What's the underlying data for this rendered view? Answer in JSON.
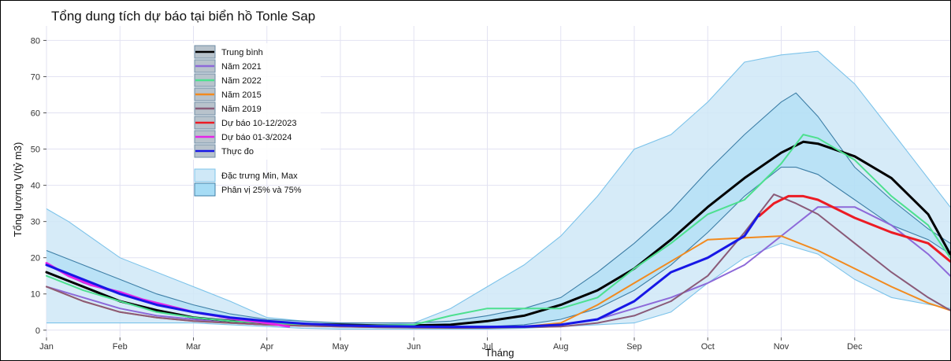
{
  "chart_data": {
    "type": "line",
    "title": "Tổng dung tích dự báo tại biển hồ Tonle Sap",
    "xlabel": "Tháng",
    "ylabel": "Tổng lượng V(tỷ m3)",
    "x_ticks": [
      "Jan",
      "Feb",
      "Mar",
      "Apr",
      "May",
      "Jun",
      "Jul",
      "Aug",
      "Sep",
      "Oct",
      "Nov",
      "Dec"
    ],
    "xlim": [
      0,
      12.3
    ],
    "ylim": [
      -2,
      84
    ],
    "y_ticks": [
      0,
      10,
      20,
      30,
      40,
      50,
      60,
      70,
      80
    ],
    "grid": true,
    "legend_position": "top-left",
    "bands": [
      {
        "name": "Đặc trưng Min, Max",
        "color": "#cfe8f7",
        "stroke": "#7cc3ea",
        "x": [
          0,
          0.3,
          1,
          2,
          2.5,
          3,
          3.5,
          4,
          4.5,
          5,
          5.5,
          6,
          6.5,
          7,
          7.5,
          8,
          8.5,
          9,
          9.5,
          10,
          10.5,
          11,
          11.5,
          12.3
        ],
        "upper": [
          33.5,
          30,
          20,
          12,
          8,
          3.5,
          2.5,
          1.8,
          1.5,
          2,
          6,
          12,
          18,
          26,
          37,
          50,
          54,
          63,
          74,
          76,
          77,
          68,
          55,
          34
        ],
        "lower": [
          2,
          2,
          2,
          2,
          1.5,
          1,
          0.5,
          0.3,
          0.3,
          0.3,
          0.3,
          0.3,
          0.5,
          1,
          1.5,
          2,
          5,
          13,
          20,
          24,
          21,
          14,
          9,
          6
        ]
      },
      {
        "name": "Phân vị 25% và 75%",
        "color": "#a6dcf5",
        "stroke": "#3d7ea6",
        "x": [
          0,
          0.5,
          1,
          1.5,
          2,
          2.5,
          3,
          3.5,
          4,
          4.5,
          5,
          5.5,
          6,
          6.5,
          7,
          7.5,
          8,
          8.5,
          9,
          9.5,
          10,
          10.2,
          10.5,
          11,
          11.5,
          12,
          12.3
        ],
        "upper": [
          22,
          18,
          14,
          10,
          7,
          4.5,
          3,
          2.5,
          2,
          2,
          2,
          2.5,
          4,
          6,
          9,
          16,
          24,
          33,
          44,
          54,
          63,
          65.5,
          59,
          45,
          36,
          28,
          24
        ],
        "lower": [
          18,
          13,
          10,
          7,
          5,
          3,
          2,
          1.5,
          1.2,
          1,
          1,
          1,
          1,
          1.5,
          3,
          6,
          11,
          18,
          27,
          37,
          45,
          45,
          43,
          36,
          29,
          25,
          21
        ]
      }
    ],
    "series": [
      {
        "name": "Trung bình",
        "color": "#000000",
        "width": 3,
        "x": [
          0,
          0.5,
          1,
          1.5,
          2,
          2.5,
          3,
          3.5,
          4,
          4.5,
          5,
          5.5,
          6,
          6.5,
          7,
          7.5,
          8,
          8.5,
          9,
          9.5,
          10,
          10.3,
          10.5,
          11,
          11.5,
          12,
          12.3
        ],
        "y": [
          16,
          12,
          8,
          5.5,
          3.5,
          2.5,
          2,
          1.7,
          1.5,
          1.3,
          1.3,
          1.5,
          2.5,
          4,
          7,
          11,
          17,
          25,
          34,
          42,
          49,
          52,
          51.5,
          48,
          42,
          32,
          21
        ]
      },
      {
        "name": "Năm 2021",
        "color": "#8d69d9",
        "width": 2,
        "x": [
          0,
          0.5,
          1,
          1.5,
          2,
          2.5,
          3,
          3.5,
          4,
          4.5,
          5,
          5.5,
          6,
          6.5,
          7,
          7.5,
          8,
          8.5,
          9,
          9.5,
          10,
          10.5,
          11,
          11.5,
          12,
          12.3
        ],
        "y": [
          12,
          9,
          6,
          4,
          3,
          2,
          1.5,
          1.2,
          1,
          1,
          1,
          1,
          1,
          1,
          1.5,
          3,
          6,
          9,
          13,
          18,
          26,
          34,
          34,
          29,
          21,
          15
        ]
      },
      {
        "name": "Năm 2022",
        "color": "#4de08f",
        "width": 2,
        "x": [
          0,
          0.5,
          1,
          1.5,
          2,
          2.5,
          3,
          3.5,
          4,
          4.5,
          5,
          5.5,
          6,
          6.5,
          7,
          7.5,
          8,
          8.5,
          9,
          9.5,
          10,
          10.3,
          10.5,
          11,
          11.5,
          12,
          12.3
        ],
        "y": [
          15,
          11,
          8,
          5,
          3.5,
          2.5,
          2,
          1.5,
          1.3,
          1.3,
          1.5,
          4,
          6,
          6,
          6,
          9,
          17,
          24,
          32,
          36,
          46,
          54,
          53,
          47,
          37,
          29,
          20
        ]
      },
      {
        "name": "Năm 2015",
        "color": "#f28a1e",
        "width": 2,
        "x": [
          0,
          0.5,
          1,
          1.5,
          2,
          2.5,
          3,
          3.5,
          4,
          4.5,
          5,
          5.5,
          6,
          6.5,
          7,
          7.5,
          8,
          8.5,
          9,
          9.5,
          10,
          10.5,
          11,
          11.5,
          12,
          12.3
        ],
        "y": [
          12,
          8,
          5,
          3.5,
          2.5,
          2,
          1.5,
          1.2,
          1,
          0.8,
          0.7,
          0.7,
          0.8,
          1,
          2,
          7,
          13,
          19,
          25,
          25.5,
          26,
          22,
          17,
          12,
          7.5,
          5.5
        ]
      },
      {
        "name": "Năm 2019",
        "color": "#8a5a78",
        "width": 2,
        "x": [
          0,
          0.5,
          1,
          1.5,
          2,
          2.5,
          3,
          3.5,
          4,
          4.5,
          5,
          5.5,
          6,
          6.5,
          7,
          7.5,
          8,
          8.5,
          9,
          9.5,
          9.9,
          10.2,
          10.5,
          11,
          11.5,
          12,
          12.3
        ],
        "y": [
          12,
          8,
          5,
          3.5,
          2.5,
          2,
          1.5,
          1.2,
          1,
          0.8,
          0.7,
          0.6,
          0.6,
          0.8,
          1,
          2,
          4,
          8,
          15,
          27,
          37.5,
          35,
          32,
          24,
          16,
          9,
          5.5
        ]
      },
      {
        "name": "Dự báo 10-12/2023",
        "color": "#ec1c24",
        "width": 3,
        "x": [
          9.7,
          9.9,
          10.1,
          10.3,
          10.5,
          11,
          11.5,
          12,
          12.3
        ],
        "y": [
          31.5,
          35,
          37,
          37,
          36,
          31,
          27,
          24,
          19
        ]
      },
      {
        "name": "Dự báo 01-3/2024",
        "color": "#e524e8",
        "width": 3,
        "x": [
          0,
          0.3,
          0.6,
          1,
          1.3,
          1.6,
          2,
          2.3,
          2.6,
          3,
          3.3
        ],
        "y": [
          18.5,
          15,
          12.5,
          10.5,
          8.5,
          7,
          5,
          4,
          3,
          2,
          1
        ]
      },
      {
        "name": "Thực đo",
        "color": "#1717e6",
        "width": 3,
        "x": [
          0,
          0.5,
          1,
          1.5,
          2,
          2.5,
          3,
          3.5,
          4,
          4.5,
          5,
          5.5,
          6,
          6.5,
          7,
          7.5,
          8,
          8.5,
          9,
          9.5,
          9.7
        ],
        "y": [
          18,
          14,
          10,
          7,
          5,
          3.5,
          2.5,
          1.8,
          1.3,
          1.1,
          1,
          0.9,
          0.9,
          1,
          1.5,
          3,
          8,
          16,
          20,
          26,
          32
        ]
      }
    ]
  },
  "legend": {
    "items": [
      {
        "label": "Trung bình",
        "color": "#000000"
      },
      {
        "label": "Năm 2021",
        "color": "#8d69d9"
      },
      {
        "label": "Năm 2022",
        "color": "#4de08f"
      },
      {
        "label": "Năm 2015",
        "color": "#f28a1e"
      },
      {
        "label": " Năm 2019",
        "color": "#8a5a78"
      },
      {
        "label": "Dự báo 10-12/2023",
        "color": "#ec1c24"
      },
      {
        "label": "Dự báo 01-3/2024",
        "color": "#e524e8"
      },
      {
        "label": "Thực đo",
        "color": "#1717e6"
      }
    ],
    "band_items": [
      {
        "label": " Đặc trưng Min, Max",
        "color": "#cfe8f7",
        "stroke": "#7cc3ea"
      },
      {
        "label": "Phân vị 25% và 75%",
        "color": "#a6dcf5",
        "stroke": "#3d7ea6"
      }
    ]
  }
}
